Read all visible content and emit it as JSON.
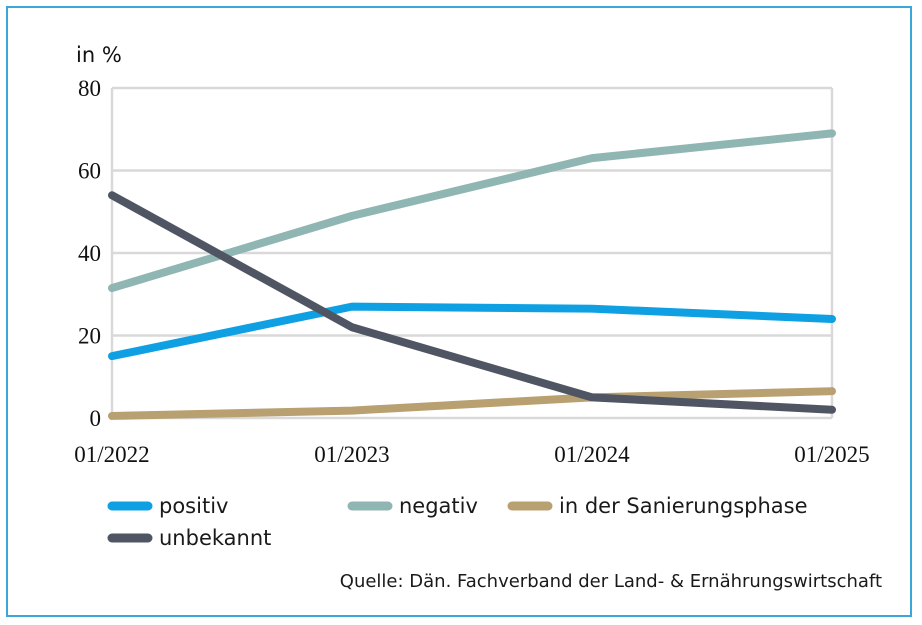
{
  "chart_data": {
    "type": "line",
    "unit_label": "in %",
    "x": [
      "01/2022",
      "01/2023",
      "01/2024",
      "01/2025"
    ],
    "ylim": [
      0,
      80
    ],
    "yticks": [
      0,
      20,
      40,
      60,
      80
    ],
    "grid": true,
    "legend_position": "bottom",
    "series": [
      {
        "name": "positiv",
        "color": "#0ea0e3",
        "values": [
          15,
          27,
          26.5,
          24
        ]
      },
      {
        "name": "negativ",
        "color": "#8fb6b2",
        "values": [
          31.5,
          49,
          63,
          69
        ]
      },
      {
        "name": "in der Sanierungsphase",
        "color": "#b8a071",
        "values": [
          0.5,
          1.8,
          5,
          6.5
        ]
      },
      {
        "name": "unbekannt",
        "color": "#4f5563",
        "values": [
          54,
          22,
          5,
          2
        ]
      }
    ]
  },
  "source": "Quelle: Dän. Fachverband der Land- & Ernährungswirtschaft",
  "colors": {
    "frame": "#3aa7d8",
    "grid": "#d9d9d9"
  }
}
